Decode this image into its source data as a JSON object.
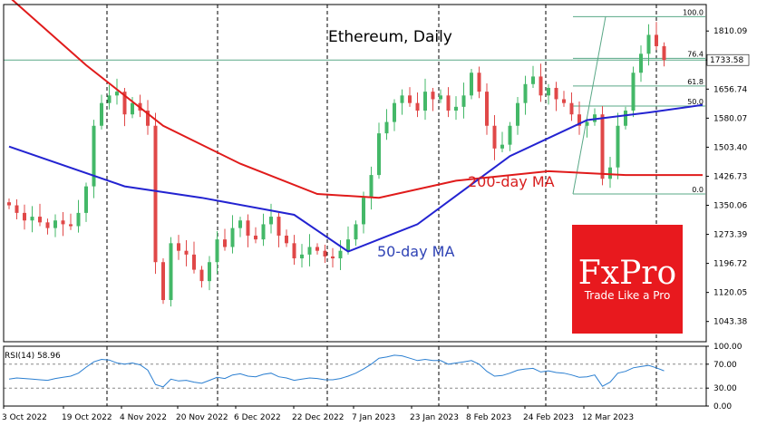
{
  "chart_data": [
    {
      "type": "candlestick",
      "title": "Ethereum, Daily",
      "y_ticks": [
        1810.09,
        1733.58,
        1656.74,
        1580.07,
        1503.4,
        1426.73,
        1350.06,
        1273.39,
        1196.72,
        1120.05,
        1043.38
      ],
      "ylim": [
        990,
        1880
      ],
      "x_ticks": [
        "3 Oct 2022",
        "19 Oct 2022",
        "4 Nov 2022",
        "20 Nov 2022",
        "6 Dec 2022",
        "22 Dec 2022",
        "7 Jan 2023",
        "23 Jan 2023",
        "8 Feb 2023",
        "24 Feb 2023",
        "12 Mar 2023"
      ],
      "current_price": "1733.58",
      "close_series": [
        1350,
        1330,
        1310,
        1320,
        1305,
        1290,
        1310,
        1300,
        1295,
        1330,
        1400,
        1560,
        1620,
        1640,
        1650,
        1590,
        1620,
        1600,
        1560,
        1200,
        1100,
        1250,
        1230,
        1220,
        1180,
        1150,
        1200,
        1260,
        1240,
        1290,
        1310,
        1270,
        1260,
        1300,
        1320,
        1270,
        1250,
        1210,
        1220,
        1240,
        1230,
        1215,
        1210,
        1230,
        1260,
        1300,
        1370,
        1430,
        1540,
        1570,
        1620,
        1640,
        1620,
        1600,
        1650,
        1630,
        1640,
        1600,
        1610,
        1640,
        1700,
        1650,
        1560,
        1500,
        1510,
        1560,
        1620,
        1670,
        1690,
        1640,
        1660,
        1630,
        1620,
        1590,
        1560,
        1570,
        1590,
        1420,
        1450,
        1560,
        1600,
        1700,
        1750,
        1800,
        1770,
        1733.58
      ],
      "ma50_points": [
        [
          0,
          1505
        ],
        [
          15,
          1400
        ],
        [
          25,
          1370
        ],
        [
          37,
          1325
        ],
        [
          44,
          1228
        ],
        [
          53,
          1300
        ],
        [
          65,
          1480
        ],
        [
          75,
          1575
        ],
        [
          83,
          1595
        ],
        [
          90,
          1615
        ]
      ],
      "ma200_points": [
        [
          0,
          1900
        ],
        [
          10,
          1720
        ],
        [
          20,
          1560
        ],
        [
          30,
          1460
        ],
        [
          40,
          1380
        ],
        [
          48,
          1370
        ],
        [
          58,
          1415
        ],
        [
          70,
          1440
        ],
        [
          80,
          1430
        ],
        [
          90,
          1430
        ]
      ],
      "annotations": [
        "200-day MA",
        "50-day MA"
      ],
      "fibonacci": [
        {
          "label": "100.0",
          "price": 1848
        },
        {
          "label": "76.4",
          "price": 1738
        },
        {
          "label": "61.8",
          "price": 1665
        },
        {
          "label": "50.0",
          "price": 1612
        },
        {
          "label": "0.0",
          "price": 1380
        }
      ]
    },
    {
      "type": "line",
      "label": "RSI(14) 58.96",
      "y_ticks": [
        "100.00",
        "70.00",
        "30.00",
        "0.00"
      ],
      "ylim": [
        0,
        100
      ],
      "values": [
        45,
        47,
        46,
        45,
        44,
        43,
        46,
        48,
        50,
        55,
        65,
        74,
        78,
        77,
        72,
        70,
        72,
        69,
        60,
        36,
        32,
        45,
        42,
        43,
        40,
        38,
        43,
        48,
        46,
        52,
        54,
        50,
        49,
        53,
        55,
        49,
        47,
        43,
        45,
        47,
        46,
        44,
        44,
        46,
        50,
        55,
        62,
        70,
        80,
        82,
        85,
        84,
        80,
        76,
        78,
        76,
        76,
        70,
        72,
        74,
        76,
        70,
        58,
        50,
        51,
        55,
        60,
        62,
        63,
        57,
        59,
        56,
        55,
        52,
        48,
        49,
        52,
        33,
        40,
        55,
        58,
        64,
        66,
        68,
        64,
        58.96
      ]
    }
  ],
  "logo": {
    "brand": "FxPro",
    "tagline": "Trade Like a Pro"
  },
  "colors": {
    "ma50": "#2323d1",
    "ma200": "#e01b1b",
    "bull": "#44b868",
    "bear": "#e04848",
    "fib": "#5aa887",
    "logo_bg": "#e8191e",
    "rsi": "#2b7fd1"
  }
}
